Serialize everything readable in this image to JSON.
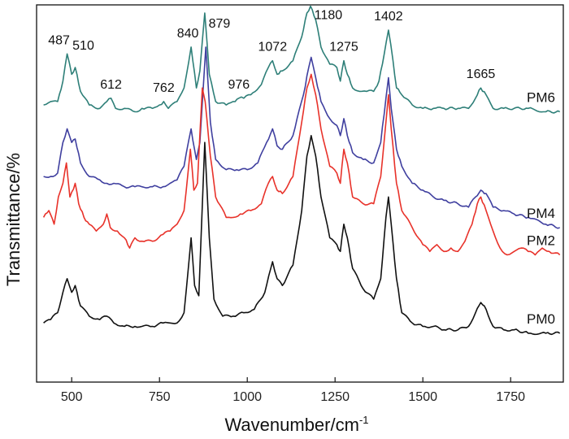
{
  "chart_data": {
    "type": "line",
    "xlabel": "Wavenumber/cm",
    "xlabel_sup": "-1",
    "ylabel": "Transmittance/%",
    "xlim": [
      400,
      1900
    ],
    "ylim": [
      0,
      100
    ],
    "x_ticks": [
      500,
      750,
      1000,
      1250,
      1500,
      1750
    ],
    "x_tick_labels": [
      "500",
      "750",
      "1000",
      "1250",
      "1500",
      "1750"
    ],
    "y_ticks_shown": false,
    "grid": false,
    "legend": "inline labels at right end of each trace",
    "series": [
      {
        "name": "PM6",
        "color": "#2e7f78",
        "baseline": 72,
        "points": [
          [
            420,
            73
          ],
          [
            440,
            74
          ],
          [
            460,
            74
          ],
          [
            475,
            80
          ],
          [
            487,
            88
          ],
          [
            500,
            82
          ],
          [
            510,
            84
          ],
          [
            525,
            77
          ],
          [
            550,
            73
          ],
          [
            580,
            72
          ],
          [
            600,
            74
          ],
          [
            612,
            75
          ],
          [
            625,
            72
          ],
          [
            650,
            72
          ],
          [
            680,
            71
          ],
          [
            700,
            72
          ],
          [
            730,
            72
          ],
          [
            750,
            73
          ],
          [
            762,
            74
          ],
          [
            775,
            72
          ],
          [
            800,
            74
          ],
          [
            820,
            78
          ],
          [
            840,
            90
          ],
          [
            855,
            78
          ],
          [
            865,
            83
          ],
          [
            879,
            100
          ],
          [
            892,
            82
          ],
          [
            910,
            74
          ],
          [
            940,
            73
          ],
          [
            960,
            74
          ],
          [
            976,
            75
          ],
          [
            990,
            75
          ],
          [
            1010,
            76
          ],
          [
            1040,
            79
          ],
          [
            1060,
            84
          ],
          [
            1072,
            86
          ],
          [
            1085,
            82
          ],
          [
            1100,
            83
          ],
          [
            1130,
            86
          ],
          [
            1155,
            93
          ],
          [
            1170,
            100
          ],
          [
            1180,
            102
          ],
          [
            1195,
            98
          ],
          [
            1210,
            90
          ],
          [
            1235,
            85
          ],
          [
            1255,
            84
          ],
          [
            1265,
            80
          ],
          [
            1275,
            86
          ],
          [
            1285,
            82
          ],
          [
            1300,
            78
          ],
          [
            1320,
            77
          ],
          [
            1340,
            77
          ],
          [
            1360,
            77
          ],
          [
            1375,
            80
          ],
          [
            1390,
            88
          ],
          [
            1402,
            95
          ],
          [
            1415,
            86
          ],
          [
            1425,
            78
          ],
          [
            1440,
            76
          ],
          [
            1470,
            73
          ],
          [
            1500,
            72
          ],
          [
            1530,
            72
          ],
          [
            1560,
            72
          ],
          [
            1600,
            72
          ],
          [
            1630,
            72
          ],
          [
            1650,
            75
          ],
          [
            1665,
            78
          ],
          [
            1680,
            76
          ],
          [
            1700,
            72
          ],
          [
            1730,
            72
          ],
          [
            1760,
            72
          ],
          [
            1800,
            72
          ],
          [
            1850,
            71
          ],
          [
            1890,
            71
          ]
        ]
      },
      {
        "name": "PM4",
        "color": "#3f3f9f",
        "baseline": 49,
        "points": [
          [
            420,
            52
          ],
          [
            440,
            52
          ],
          [
            460,
            53
          ],
          [
            475,
            62
          ],
          [
            487,
            66
          ],
          [
            500,
            62
          ],
          [
            510,
            63
          ],
          [
            525,
            56
          ],
          [
            550,
            52
          ],
          [
            580,
            51
          ],
          [
            600,
            50
          ],
          [
            620,
            50
          ],
          [
            650,
            49
          ],
          [
            680,
            49
          ],
          [
            700,
            49
          ],
          [
            730,
            49
          ],
          [
            760,
            49
          ],
          [
            780,
            50
          ],
          [
            800,
            51
          ],
          [
            820,
            55
          ],
          [
            840,
            66
          ],
          [
            855,
            57
          ],
          [
            865,
            62
          ],
          [
            882,
            90
          ],
          [
            895,
            68
          ],
          [
            910,
            57
          ],
          [
            940,
            54
          ],
          [
            970,
            54
          ],
          [
            1000,
            54
          ],
          [
            1030,
            56
          ],
          [
            1055,
            62
          ],
          [
            1072,
            66
          ],
          [
            1085,
            61
          ],
          [
            1100,
            60
          ],
          [
            1130,
            64
          ],
          [
            1160,
            76
          ],
          [
            1175,
            84
          ],
          [
            1182,
            87
          ],
          [
            1195,
            81
          ],
          [
            1210,
            74
          ],
          [
            1235,
            69
          ],
          [
            1255,
            67
          ],
          [
            1265,
            64
          ],
          [
            1275,
            69
          ],
          [
            1285,
            64
          ],
          [
            1300,
            59
          ],
          [
            1330,
            57
          ],
          [
            1360,
            56
          ],
          [
            1380,
            62
          ],
          [
            1395,
            75
          ],
          [
            1402,
            81
          ],
          [
            1410,
            72
          ],
          [
            1425,
            60
          ],
          [
            1440,
            55
          ],
          [
            1470,
            50
          ],
          [
            1500,
            48
          ],
          [
            1530,
            46
          ],
          [
            1560,
            45
          ],
          [
            1600,
            44
          ],
          [
            1630,
            43
          ],
          [
            1650,
            46
          ],
          [
            1665,
            48
          ],
          [
            1680,
            47
          ],
          [
            1700,
            43
          ],
          [
            1730,
            42
          ],
          [
            1760,
            41
          ],
          [
            1800,
            40
          ],
          [
            1850,
            38
          ],
          [
            1890,
            37
          ]
        ]
      },
      {
        "name": "PM2",
        "color": "#e8322a",
        "baseline": 34,
        "points": [
          [
            420,
            40
          ],
          [
            435,
            42
          ],
          [
            450,
            38
          ],
          [
            462,
            46
          ],
          [
            475,
            50
          ],
          [
            485,
            56
          ],
          [
            495,
            46
          ],
          [
            510,
            50
          ],
          [
            520,
            44
          ],
          [
            535,
            40
          ],
          [
            550,
            38
          ],
          [
            570,
            36
          ],
          [
            590,
            38
          ],
          [
            600,
            41
          ],
          [
            610,
            37
          ],
          [
            630,
            36
          ],
          [
            650,
            34
          ],
          [
            665,
            31
          ],
          [
            680,
            34
          ],
          [
            700,
            33
          ],
          [
            730,
            33
          ],
          [
            760,
            35
          ],
          [
            780,
            36
          ],
          [
            800,
            38
          ],
          [
            820,
            42
          ],
          [
            838,
            60
          ],
          [
            848,
            48
          ],
          [
            858,
            50
          ],
          [
            872,
            78
          ],
          [
            880,
            74
          ],
          [
            895,
            58
          ],
          [
            910,
            46
          ],
          [
            940,
            40
          ],
          [
            960,
            40
          ],
          [
            980,
            41
          ],
          [
            1010,
            42
          ],
          [
            1040,
            44
          ],
          [
            1060,
            50
          ],
          [
            1072,
            52
          ],
          [
            1085,
            48
          ],
          [
            1100,
            47
          ],
          [
            1130,
            52
          ],
          [
            1155,
            68
          ],
          [
            1170,
            78
          ],
          [
            1182,
            82
          ],
          [
            1195,
            76
          ],
          [
            1210,
            66
          ],
          [
            1235,
            55
          ],
          [
            1255,
            53
          ],
          [
            1265,
            50
          ],
          [
            1275,
            60
          ],
          [
            1285,
            56
          ],
          [
            1300,
            46
          ],
          [
            1330,
            44
          ],
          [
            1360,
            44
          ],
          [
            1380,
            52
          ],
          [
            1395,
            68
          ],
          [
            1402,
            76
          ],
          [
            1410,
            66
          ],
          [
            1425,
            50
          ],
          [
            1440,
            42
          ],
          [
            1470,
            37
          ],
          [
            1500,
            32
          ],
          [
            1520,
            30
          ],
          [
            1540,
            32
          ],
          [
            1560,
            30
          ],
          [
            1580,
            31
          ],
          [
            1600,
            30
          ],
          [
            1620,
            33
          ],
          [
            1640,
            38
          ],
          [
            1655,
            44
          ],
          [
            1665,
            46
          ],
          [
            1680,
            42
          ],
          [
            1700,
            36
          ],
          [
            1720,
            31
          ],
          [
            1740,
            29
          ],
          [
            1760,
            30
          ],
          [
            1780,
            31
          ],
          [
            1800,
            30
          ],
          [
            1820,
            29
          ],
          [
            1840,
            31
          ],
          [
            1860,
            30
          ],
          [
            1890,
            29
          ]
        ]
      },
      {
        "name": "PM0",
        "color": "#111111",
        "baseline": 8,
        "points": [
          [
            420,
            9
          ],
          [
            440,
            10
          ],
          [
            460,
            12
          ],
          [
            475,
            18
          ],
          [
            487,
            22
          ],
          [
            500,
            18
          ],
          [
            510,
            20
          ],
          [
            525,
            14
          ],
          [
            550,
            11
          ],
          [
            580,
            10
          ],
          [
            600,
            11
          ],
          [
            620,
            9
          ],
          [
            650,
            8
          ],
          [
            680,
            8
          ],
          [
            700,
            8
          ],
          [
            730,
            8
          ],
          [
            760,
            9
          ],
          [
            780,
            9
          ],
          [
            800,
            9
          ],
          [
            820,
            12
          ],
          [
            840,
            34
          ],
          [
            850,
            20
          ],
          [
            862,
            17
          ],
          [
            879,
            62
          ],
          [
            892,
            34
          ],
          [
            905,
            16
          ],
          [
            930,
            11
          ],
          [
            960,
            11
          ],
          [
            990,
            12
          ],
          [
            1020,
            13
          ],
          [
            1050,
            18
          ],
          [
            1072,
            27
          ],
          [
            1085,
            22
          ],
          [
            1100,
            20
          ],
          [
            1130,
            26
          ],
          [
            1155,
            42
          ],
          [
            1170,
            58
          ],
          [
            1182,
            64
          ],
          [
            1195,
            58
          ],
          [
            1210,
            46
          ],
          [
            1235,
            34
          ],
          [
            1255,
            32
          ],
          [
            1265,
            30
          ],
          [
            1275,
            38
          ],
          [
            1285,
            34
          ],
          [
            1300,
            25
          ],
          [
            1330,
            19
          ],
          [
            1360,
            16
          ],
          [
            1380,
            22
          ],
          [
            1395,
            40
          ],
          [
            1402,
            46
          ],
          [
            1410,
            38
          ],
          [
            1425,
            22
          ],
          [
            1440,
            12
          ],
          [
            1470,
            9
          ],
          [
            1500,
            8
          ],
          [
            1530,
            8
          ],
          [
            1560,
            7
          ],
          [
            1600,
            7
          ],
          [
            1630,
            8
          ],
          [
            1650,
            12
          ],
          [
            1665,
            15
          ],
          [
            1680,
            13
          ],
          [
            1700,
            8
          ],
          [
            1730,
            7
          ],
          [
            1760,
            7
          ],
          [
            1800,
            6
          ],
          [
            1850,
            6
          ],
          [
            1890,
            6
          ]
        ]
      }
    ],
    "peak_labels": [
      {
        "text": "487",
        "x": 487,
        "series": "PM6"
      },
      {
        "text": "510",
        "x": 510,
        "series": "PM6"
      },
      {
        "text": "612",
        "x": 612,
        "series": "PM6"
      },
      {
        "text": "762",
        "x": 762,
        "series": "PM6"
      },
      {
        "text": "840",
        "x": 840,
        "series": "PM6"
      },
      {
        "text": "879",
        "x": 879,
        "series": "PM6"
      },
      {
        "text": "976",
        "x": 976,
        "series": "PM6"
      },
      {
        "text": "1072",
        "x": 1072,
        "series": "PM6"
      },
      {
        "text": "1180",
        "x": 1180,
        "series": "PM6"
      },
      {
        "text": "1275",
        "x": 1275,
        "series": "PM6"
      },
      {
        "text": "1402",
        "x": 1402,
        "series": "PM6"
      },
      {
        "text": "1665",
        "x": 1665,
        "series": "PM6"
      }
    ]
  }
}
